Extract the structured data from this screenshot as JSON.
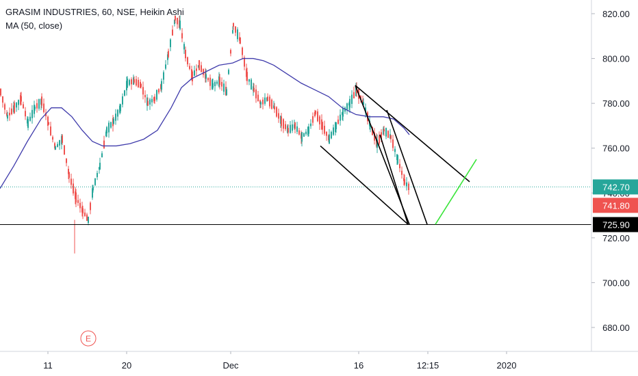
{
  "legend": {
    "symbol_line": "GRASIM INDUSTRIES, 60, NSE, Heikin Ashi",
    "indicator_line": "MA (50, close)"
  },
  "earnings_marker": "E",
  "colors": {
    "up": "#26a69a",
    "down": "#ef5350",
    "ma": "#3f3bab",
    "trendline": "#000000",
    "projection": "#39e539",
    "last_price_bg": "#26a69a",
    "prev_close_bg": "#ef5350",
    "level_bg": "#000000",
    "axis_text": "#131722",
    "grid": "#e0e3eb"
  },
  "chart_data": {
    "type": "candlestick",
    "y_axis": {
      "min": 670,
      "max": 825,
      "ticks": [
        "820.00",
        "800.00",
        "780.00",
        "760.00",
        "740.00",
        "720.00",
        "700.00",
        "680.00"
      ],
      "tick_values": [
        820,
        800,
        780,
        760,
        740,
        720,
        700,
        680
      ]
    },
    "x_axis": {
      "labels": [
        "11",
        "20",
        "Dec",
        "16",
        "12:15",
        "2020"
      ]
    },
    "price_labels": [
      {
        "value": 742.7,
        "text": "742.70",
        "color_key": "last_price_bg"
      },
      {
        "value": 741.8,
        "text": "741.80",
        "color_key": "prev_close_bg"
      },
      {
        "value": 725.9,
        "text": "725.90",
        "color_key": "level_bg"
      }
    ],
    "horizontal_level": 725.9,
    "dotted_level": 742.7,
    "segments": [
      [
        0,
        785,
        10,
        774
      ],
      [
        10,
        774,
        20,
        778
      ],
      [
        20,
        778,
        30,
        782
      ],
      [
        30,
        782,
        40,
        771
      ],
      [
        40,
        771,
        50,
        778
      ],
      [
        50,
        778,
        60,
        781
      ],
      [
        60,
        781,
        70,
        771
      ],
      [
        70,
        771,
        80,
        760
      ],
      [
        80,
        760,
        90,
        764
      ],
      [
        90,
        764,
        100,
        748
      ],
      [
        100,
        748,
        110,
        738
      ],
      [
        110,
        738,
        120,
        732
      ],
      [
        120,
        732,
        128,
        728
      ],
      [
        128,
        728,
        135,
        742
      ],
      [
        135,
        742,
        145,
        752
      ],
      [
        145,
        752,
        155,
        768
      ],
      [
        155,
        768,
        165,
        772
      ],
      [
        165,
        772,
        175,
        778
      ],
      [
        175,
        778,
        185,
        789
      ],
      [
        185,
        789,
        195,
        790
      ],
      [
        195,
        790,
        205,
        788
      ],
      [
        205,
        788,
        215,
        780
      ],
      [
        215,
        780,
        225,
        782
      ],
      [
        225,
        782,
        235,
        788
      ],
      [
        235,
        788,
        245,
        802
      ],
      [
        245,
        802,
        255,
        818
      ],
      [
        255,
        818,
        262,
        815
      ],
      [
        262,
        815,
        270,
        802
      ],
      [
        270,
        802,
        280,
        792
      ],
      [
        280,
        792,
        290,
        797
      ],
      [
        290,
        797,
        300,
        792
      ],
      [
        300,
        792,
        310,
        788
      ],
      [
        310,
        788,
        320,
        790
      ],
      [
        320,
        790,
        330,
        785
      ],
      [
        330,
        785,
        340,
        815
      ],
      [
        340,
        815,
        350,
        808
      ],
      [
        350,
        808,
        360,
        792
      ],
      [
        360,
        792,
        370,
        786
      ],
      [
        370,
        786,
        380,
        780
      ],
      [
        380,
        780,
        390,
        782
      ],
      [
        390,
        782,
        400,
        778
      ],
      [
        400,
        778,
        410,
        772
      ],
      [
        410,
        772,
        420,
        768
      ],
      [
        420,
        768,
        430,
        770
      ],
      [
        430,
        770,
        440,
        765
      ],
      [
        440,
        765,
        450,
        768
      ],
      [
        450,
        768,
        460,
        776
      ],
      [
        460,
        776,
        470,
        770
      ],
      [
        470,
        770,
        480,
        764
      ],
      [
        480,
        764,
        490,
        770
      ],
      [
        490,
        770,
        500,
        776
      ],
      [
        500,
        776,
        510,
        780
      ],
      [
        510,
        780,
        520,
        786
      ],
      [
        520,
        786,
        530,
        780
      ],
      [
        530,
        780,
        540,
        770
      ],
      [
        540,
        770,
        550,
        762
      ],
      [
        550,
        762,
        560,
        768
      ],
      [
        560,
        768,
        570,
        765
      ],
      [
        570,
        765,
        580,
        755
      ],
      [
        580,
        755,
        590,
        745
      ],
      [
        590,
        745,
        598,
        742
      ]
    ],
    "moving_average": [
      [
        0,
        742
      ],
      [
        20,
        752
      ],
      [
        40,
        763
      ],
      [
        60,
        773
      ],
      [
        75,
        778
      ],
      [
        90,
        778
      ],
      [
        105,
        774
      ],
      [
        120,
        768
      ],
      [
        135,
        763
      ],
      [
        150,
        761
      ],
      [
        170,
        761
      ],
      [
        190,
        762
      ],
      [
        210,
        764
      ],
      [
        230,
        768
      ],
      [
        250,
        778
      ],
      [
        265,
        787
      ],
      [
        280,
        791
      ],
      [
        300,
        794
      ],
      [
        320,
        797
      ],
      [
        340,
        798
      ],
      [
        355,
        800
      ],
      [
        370,
        800
      ],
      [
        385,
        799
      ],
      [
        400,
        797
      ],
      [
        420,
        793
      ],
      [
        440,
        789
      ],
      [
        460,
        786
      ],
      [
        480,
        783
      ],
      [
        500,
        778
      ],
      [
        520,
        775
      ],
      [
        540,
        774
      ],
      [
        560,
        774
      ],
      [
        575,
        773
      ],
      [
        590,
        769
      ],
      [
        598,
        766
      ]
    ],
    "trendlines": [
      {
        "x1": 468,
        "y1": 761,
        "x2": 596,
        "y2": 726,
        "kind": "trendline"
      },
      {
        "x1": 519,
        "y1": 788,
        "x2": 686,
        "y2": 745,
        "kind": "trendline"
      },
      {
        "x1": 519,
        "y1": 788,
        "x2": 598,
        "y2": 726,
        "kind": "trendline"
      },
      {
        "x1": 565,
        "y1": 777,
        "x2": 624,
        "y2": 726,
        "kind": "trendline"
      },
      {
        "x1": 555,
        "y1": 766,
        "x2": 596,
        "y2": 726,
        "kind": "trendline"
      },
      {
        "x1": 636,
        "y1": 726,
        "x2": 696,
        "y2": 755,
        "kind": "projection"
      }
    ]
  }
}
